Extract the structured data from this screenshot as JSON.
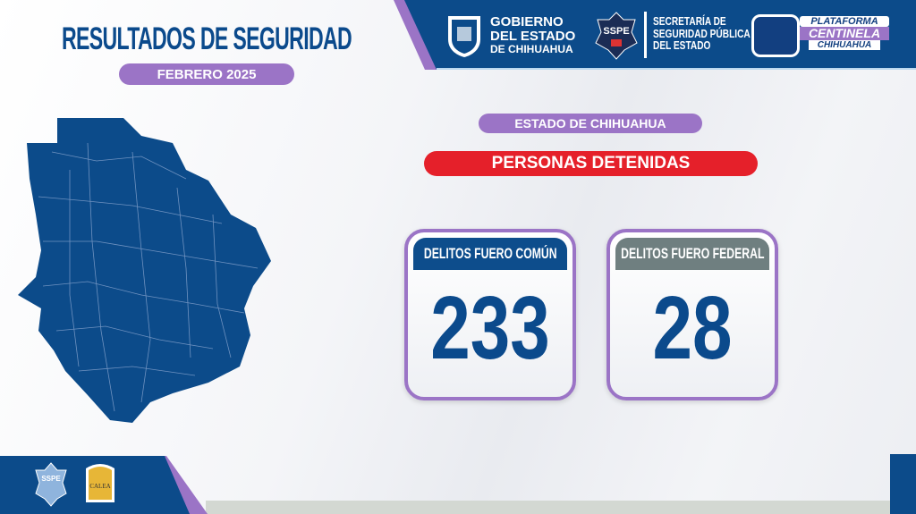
{
  "header": {
    "title": "RESULTADOS DE SEGURIDAD",
    "period": "FEBRERO 2025"
  },
  "logos": {
    "gobierno": [
      "GOBIERNO",
      "DEL ESTADO",
      "DE CHIHUAHUA"
    ],
    "sspe_badge": "SSPE",
    "secretaria": [
      "SECRETARÍA DE",
      "SEGURIDAD PÚBLICA",
      "DEL ESTADO"
    ],
    "plataforma": [
      "PLATAFORMA",
      "CENTINELA",
      "CHIHUAHUA"
    ],
    "footer_badge": "SSPE",
    "footer_seal": "CALEA"
  },
  "main": {
    "region": "ESTADO DE CHIHUAHUA",
    "category": "PERSONAS DETENIDAS",
    "cards": [
      {
        "label": "DELITOS FUERO COMÚN",
        "value": "233",
        "color": "#0d4d8c"
      },
      {
        "label": "DELITOS FUERO FEDERAL",
        "value": "28",
        "color": "#6f7f80"
      }
    ]
  },
  "colors": {
    "blue": "#0b4a8c",
    "purple": "#9b74c6",
    "red": "#e5202a"
  }
}
